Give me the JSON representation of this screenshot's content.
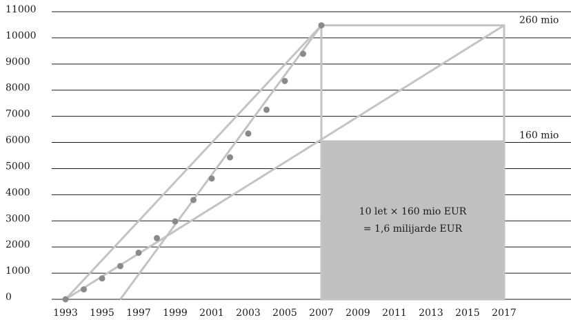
{
  "chart_data": {
    "type": "scatter",
    "title": "",
    "xlabel": "",
    "ylabel": "",
    "xlim": [
      1993,
      2017
    ],
    "ylim": [
      0,
      11000
    ],
    "x_ticks": [
      "1993",
      "1995",
      "1997",
      "1999",
      "2001",
      "2003",
      "2005",
      "2007",
      "2009",
      "2011",
      "2013",
      "2015",
      "2017"
    ],
    "y_ticks": [
      "0",
      "1000",
      "2000",
      "3000",
      "4000",
      "5000",
      "6000",
      "7000",
      "8000",
      "9000",
      "10000",
      "11000"
    ],
    "grid": "horizontal",
    "points": [
      {
        "x": 1993,
        "y": 0
      },
      {
        "x": 1994,
        "y": 380
      },
      {
        "x": 1995,
        "y": 800
      },
      {
        "x": 1996,
        "y": 1270
      },
      {
        "x": 1997,
        "y": 1780
      },
      {
        "x": 1998,
        "y": 2340
      },
      {
        "x": 1999,
        "y": 2980
      },
      {
        "x": 2000,
        "y": 3800
      },
      {
        "x": 2001,
        "y": 4620
      },
      {
        "x": 2002,
        "y": 5430
      },
      {
        "x": 2003,
        "y": 6340
      },
      {
        "x": 2004,
        "y": 7250
      },
      {
        "x": 2005,
        "y": 8350
      },
      {
        "x": 2006,
        "y": 9390
      },
      {
        "x": 2007,
        "y": 10480
      }
    ],
    "lines": [
      {
        "x": [
          1993,
          2007
        ],
        "y": [
          0,
          10480
        ]
      },
      {
        "x": [
          1996,
          2007
        ],
        "y": [
          0,
          10480
        ]
      },
      {
        "x": [
          1993,
          2017
        ],
        "y": [
          0,
          10480
        ]
      }
    ],
    "box_outline": {
      "x": [
        2007,
        2017
      ],
      "y": [
        0,
        10480
      ]
    },
    "box_fill": {
      "x": [
        2007,
        2017
      ],
      "y": [
        0,
        6080
      ]
    },
    "level_labels": [
      {
        "text": "260 mio",
        "y": 10480
      },
      {
        "text": "160 mio",
        "y": 6080
      }
    ],
    "box_text": [
      "10 let × 160 mio EUR",
      "= 1,6 milijarde EUR"
    ],
    "colors": {
      "line": "#c3c3c3",
      "point": "#8a8a8a",
      "fill": "#c0c0c0",
      "grid": "#1a1a1a"
    }
  }
}
